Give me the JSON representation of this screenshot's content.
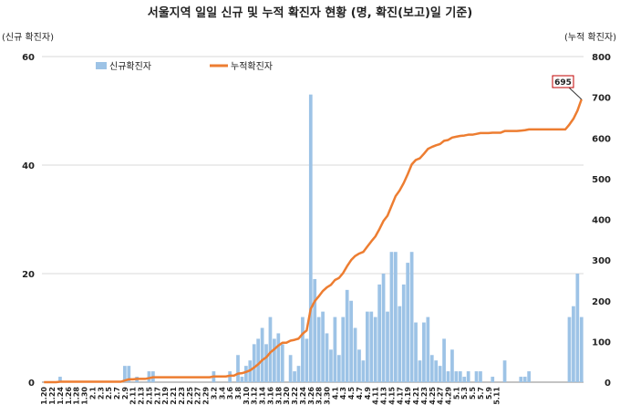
{
  "chart_data": {
    "type": "bar+line",
    "title": "서울지역 일일 신규 및 누적 확진자 현황 (명, 확진(보고)일 기준)",
    "left_axis_title": "(신규 확진자)",
    "right_axis_title": "(누적 확진자)",
    "left_ylim": [
      0,
      60
    ],
    "left_ticks": [
      "0",
      "20",
      "40",
      "60"
    ],
    "right_ylim": [
      0,
      800
    ],
    "right_ticks": [
      "0",
      "100",
      "200",
      "300",
      "400",
      "500",
      "600",
      "700",
      "800"
    ],
    "x_tick_labels": [
      "1.20",
      "1.22",
      "1.24",
      "1.26",
      "1.28",
      "1.30",
      "2.1",
      "2.3",
      "2.5",
      "2.7",
      "2.9",
      "2.11",
      "2.13",
      "2.15",
      "2.17",
      "2.19",
      "2.21",
      "2.23",
      "2.25",
      "2.27",
      "2.29",
      "3.2",
      "3.4",
      "3.6",
      "3.8",
      "3.10",
      "3.12",
      "3.14",
      "3.16",
      "3.18",
      "3.20",
      "3.22",
      "3.24",
      "3.26",
      "3.28",
      "3.30",
      "4.1",
      "4.3",
      "4.5",
      "4.7",
      "4.9",
      "4.11",
      "4.13",
      "4.15",
      "4.17",
      "4.19",
      "4.21",
      "4.23",
      "4.25",
      "4.27",
      "4.29",
      "5.1",
      "5.3",
      "5.5",
      "5.7",
      "5.9",
      "5.11"
    ],
    "legend": [
      "신규확진자",
      "누적확진자"
    ],
    "legend_position": "top-left",
    "grid": "horizontal",
    "bar_color": "#9DC3E6",
    "line_color": "#ED7D31",
    "annotation": "695",
    "series": [
      {
        "name": "신규확진자",
        "axis": "left",
        "values": [
          0,
          0,
          0,
          0,
          1,
          0,
          0,
          0,
          0,
          0,
          0,
          0,
          0,
          0,
          0,
          0,
          0,
          0,
          0,
          0,
          3,
          3,
          0,
          1,
          0,
          0,
          2,
          2,
          0,
          0,
          0,
          0,
          0,
          0,
          0,
          0,
          0,
          0,
          0,
          0,
          0,
          0,
          2,
          0,
          0,
          0,
          2,
          0,
          5,
          1,
          3,
          4,
          7,
          8,
          10,
          7,
          12,
          8,
          9,
          7,
          0,
          5,
          2,
          3,
          12,
          8,
          53,
          19,
          12,
          13,
          9,
          6,
          12,
          5,
          12,
          17,
          15,
          10,
          6,
          4,
          13,
          13,
          12,
          18,
          20,
          13,
          24,
          24,
          14,
          18,
          22,
          24,
          11,
          4,
          11,
          12,
          5,
          4,
          3,
          8,
          2,
          6,
          2,
          2,
          1,
          2,
          0,
          2,
          2,
          0,
          0,
          1,
          0,
          0,
          4,
          0,
          0,
          0,
          1,
          1,
          2,
          0,
          0,
          0,
          0,
          0,
          0,
          0,
          0,
          0,
          12,
          14,
          20,
          12
        ]
      },
      {
        "name": "누적확진자",
        "axis": "right",
        "values": [
          0,
          0,
          0,
          0,
          1,
          1,
          1,
          1,
          1,
          1,
          1,
          1,
          1,
          1,
          1,
          1,
          1,
          1,
          1,
          1,
          4,
          7,
          7,
          8,
          8,
          8,
          10,
          12,
          12,
          12,
          12,
          12,
          12,
          12,
          12,
          12,
          12,
          12,
          12,
          12,
          12,
          12,
          14,
          14,
          14,
          14,
          16,
          16,
          21,
          22,
          25,
          29,
          36,
          44,
          54,
          61,
          73,
          81,
          90,
          97,
          97,
          102,
          104,
          107,
          119,
          127,
          180,
          199,
          211,
          224,
          233,
          239,
          251,
          256,
          268,
          285,
          300,
          310,
          316,
          320,
          333,
          346,
          358,
          376,
          396,
          409,
          433,
          457,
          471,
          489,
          511,
          535,
          546,
          550,
          561,
          573,
          578,
          582,
          585,
          593,
          595,
          601,
          603,
          605,
          606,
          608,
          608,
          610,
          612,
          612,
          612,
          613,
          613,
          613,
          617,
          617,
          617,
          617,
          618,
          619,
          621,
          621,
          621,
          621,
          621,
          621,
          621,
          621,
          621,
          621,
          633,
          647,
          667,
          695
        ]
      }
    ]
  }
}
